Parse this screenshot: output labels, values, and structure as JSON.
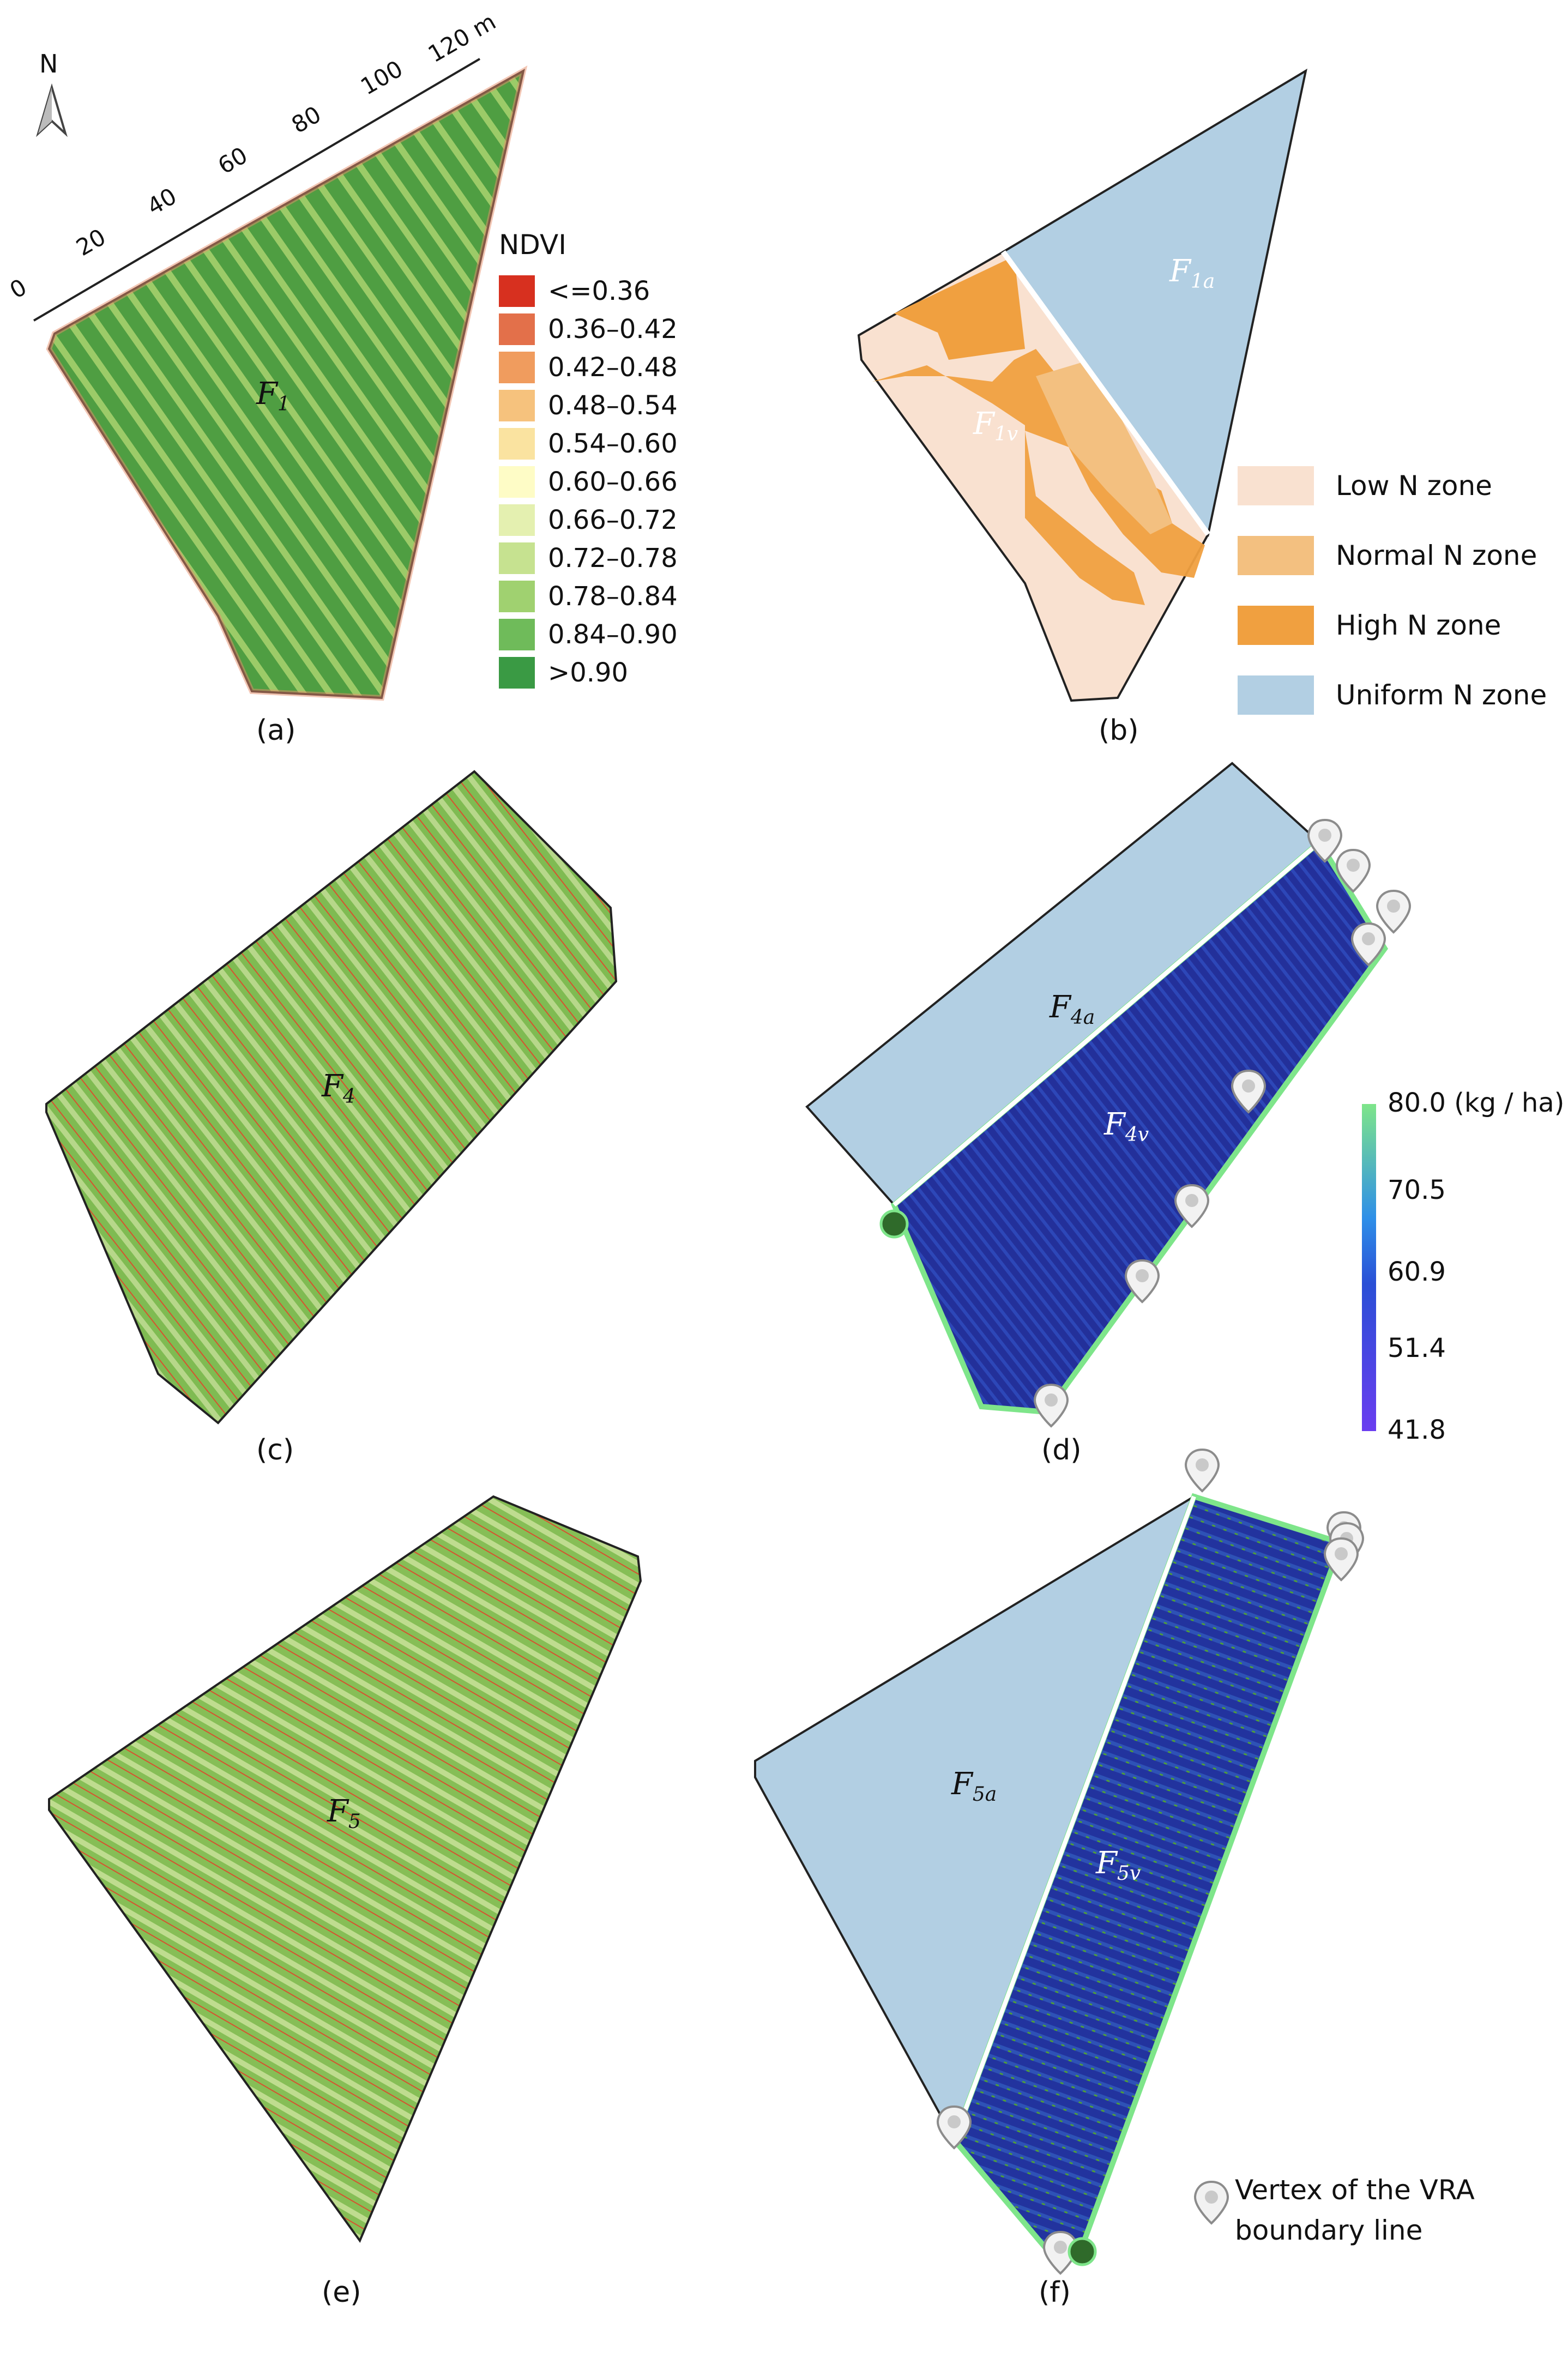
{
  "panels": {
    "a": {
      "caption": "(a)",
      "field_label": "F",
      "field_sub": "1",
      "north_label": "N",
      "scale_ticks": [
        "0",
        "20",
        "40",
        "60",
        "80",
        "100",
        "120 m"
      ],
      "legend": {
        "title": "NDVI",
        "items": [
          {
            "label": "<=0.36",
            "color": "#d7301f"
          },
          {
            "label": "0.36–0.42",
            "color": "#e3704a"
          },
          {
            "label": "0.42–0.48",
            "color": "#f09c5e"
          },
          {
            "label": "0.48–0.54",
            "color": "#f6c27d"
          },
          {
            "label": "0.54–0.60",
            "color": "#fae3a0"
          },
          {
            "label": "0.60–0.66",
            "color": "#fefcc6"
          },
          {
            "label": "0.66–0.72",
            "color": "#e4f0b0"
          },
          {
            "label": "0.72–0.78",
            "color": "#c6e290"
          },
          {
            "label": "0.78–0.84",
            "color": "#a0d170"
          },
          {
            "label": "0.84–0.90",
            "color": "#6fbb5a"
          },
          {
            "label": ">0.90",
            "color": "#3a9a44"
          }
        ]
      }
    },
    "b": {
      "caption": "(b)",
      "labels": [
        {
          "main": "F",
          "sub": "1a"
        },
        {
          "main": "F",
          "sub": "1v"
        }
      ],
      "zones": [
        {
          "label": "Low N zone",
          "color": "#f9e1d0"
        },
        {
          "label": "Normal N zone",
          "color": "#f3c080"
        },
        {
          "label": "High N zone",
          "color": "#f0a040"
        },
        {
          "label": "Uniform N zone",
          "color": "#b2cfe3"
        }
      ]
    },
    "c": {
      "caption": "(c)",
      "field_label": "F",
      "field_sub": "4"
    },
    "d": {
      "caption": "(d)",
      "labels": [
        {
          "main": "F",
          "sub": "4a"
        },
        {
          "main": "F",
          "sub": "4v"
        }
      ],
      "colorbar": {
        "ticks": [
          "80.0 (kg / ha)",
          "70.5",
          "60.9",
          "51.4",
          "41.8"
        ],
        "color_top": "#7ee58a",
        "color_mid": "#2a4fd6",
        "color_bottom": "#6a3df0"
      }
    },
    "e": {
      "caption": "(e)",
      "field_label": "F",
      "field_sub": "5"
    },
    "f": {
      "caption": "(f)",
      "labels": [
        {
          "main": "F",
          "sub": "5a"
        },
        {
          "main": "F",
          "sub": "5v"
        }
      ],
      "marker_legend": "Vertex of the VRA boundary line"
    }
  },
  "colors": {
    "ndvi_field": "#5aaa4c",
    "uniform_zone": "#b2cfe3",
    "vra_zone": "#1c2a8e",
    "low_zone": "#f9e1d0",
    "high_zone": "#f0a040",
    "field_light": "#8cc060"
  }
}
